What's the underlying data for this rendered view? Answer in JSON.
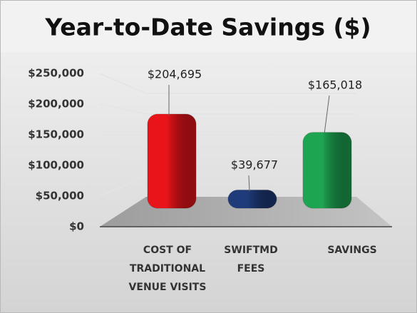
{
  "chart_data": {
    "type": "bar3d",
    "title": "Year-to-Date Savings ($)",
    "categories": [
      "COST OF TRADITIONAL VENUE VISITS",
      "SWIFTMD FEES",
      "SAVINGS"
    ],
    "values": [
      204695,
      39677,
      165018
    ],
    "value_labels": [
      "$204,695",
      "$39,677",
      "$165,018"
    ],
    "colors": [
      "#e8141a",
      "#1f3b7a",
      "#1ea552"
    ],
    "ylim": [
      0,
      250000
    ],
    "yticks": [
      {
        "value": 0,
        "label": "$0"
      },
      {
        "value": 50000,
        "label": "$50,000"
      },
      {
        "value": 100000,
        "label": "$100,000"
      },
      {
        "value": 150000,
        "label": "$150,000"
      },
      {
        "value": 200000,
        "label": "$200,000"
      },
      {
        "value": 250000,
        "label": "$250,000"
      }
    ],
    "grid": true
  }
}
